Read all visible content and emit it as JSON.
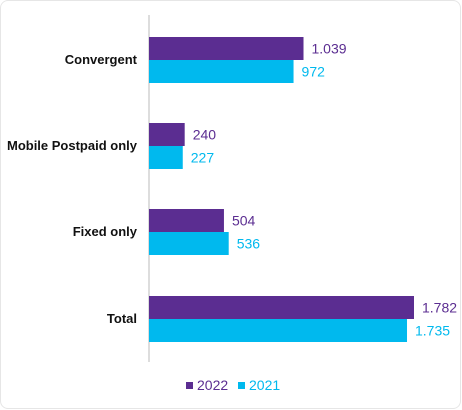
{
  "colors": {
    "s2022": "#5b2d91",
    "s2021": "#00b9ee",
    "axis": "#bbbbbb"
  },
  "chart_data": {
    "type": "bar",
    "orientation": "horizontal",
    "title": "",
    "xlabel": "",
    "ylabel": "",
    "xlim": [
      0,
      1900
    ],
    "categories": [
      "Convergent",
      "Mobile Postpaid only",
      "Fixed only",
      "Total"
    ],
    "series": [
      {
        "name": "2022",
        "values": [
          1039,
          240,
          504,
          1782
        ],
        "labels": [
          "1.039",
          "240",
          "504",
          "1.782"
        ]
      },
      {
        "name": "2021",
        "values": [
          972,
          227,
          536,
          1735
        ],
        "labels": [
          "972",
          "227",
          "536",
          "1.735"
        ]
      }
    ],
    "legend": "bottom",
    "grid": false
  }
}
